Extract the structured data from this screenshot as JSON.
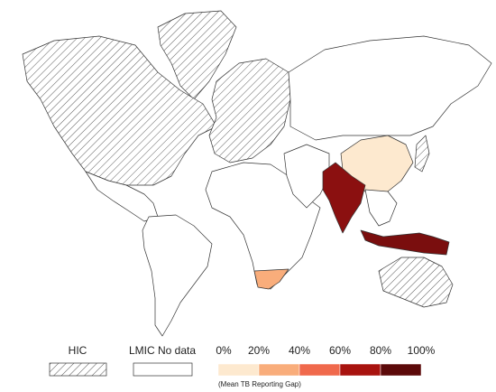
{
  "legend": {
    "categories": [
      "HIC",
      "LMIC No data"
    ],
    "scale": {
      "ticks": [
        "0%",
        "20%",
        "40%",
        "60%",
        "80%",
        "100%"
      ],
      "colors": [
        "#fde9cf",
        "#f9ad7b",
        "#f0694c",
        "#a8130f",
        "#5c0a0a"
      ],
      "caption": "(Mean TB Reporting Gap)"
    }
  }
}
